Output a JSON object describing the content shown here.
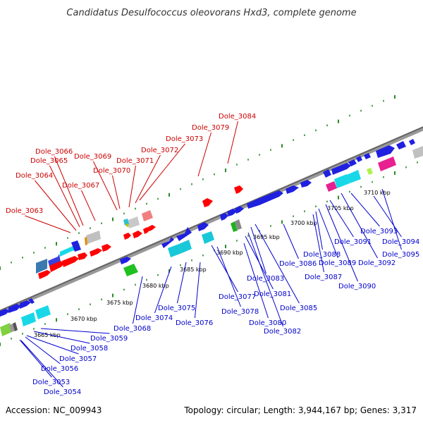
{
  "title": "Candidatus Desulfococcus oleovorans Hxd3, complete genome",
  "accession": "Accession: NC_009943",
  "summary": "Topology: circular; Length: 3,944,167 bp; Genes: 3,317",
  "colors": {
    "backbone": "#777777",
    "tick": "#2a8a2a",
    "forward_label": "#cc0000",
    "reverse_label": "#0000cc"
  },
  "scale_labels": [
    "3665 kbp",
    "3670 kbp",
    "3675 kbp",
    "3680 kbp",
    "3685 kbp",
    "3690 kbp",
    "3695 kbp",
    "3700 kbp",
    "3705 kbp",
    "3710 kbp"
  ],
  "forward_genes": [
    "Dole_3063",
    "Dole_3064",
    "Dole_3065",
    "Dole_3066",
    "Dole_3067",
    "Dole_3069",
    "Dole_3070",
    "Dole_3071",
    "Dole_3072",
    "Dole_3073",
    "Dole_3079",
    "Dole_3084"
  ],
  "reverse_genes": [
    "Dole_3053",
    "Dole_3054",
    "Dole_3056",
    "Dole_3057",
    "Dole_3058",
    "Dole_3059",
    "Dole_3068",
    "Dole_3074",
    "Dole_3075",
    "Dole_3076",
    "Dole_3077",
    "Dole_3078",
    "Dole_3080",
    "Dole_3081",
    "Dole_3082",
    "Dole_3083",
    "Dole_3085",
    "Dole_3086",
    "Dole_3087",
    "Dole_3088",
    "Dole_3089",
    "Dole_3090",
    "Dole_3091",
    "Dole_3092",
    "Dole_3093",
    "Dole_3094",
    "Dole_3095"
  ]
}
